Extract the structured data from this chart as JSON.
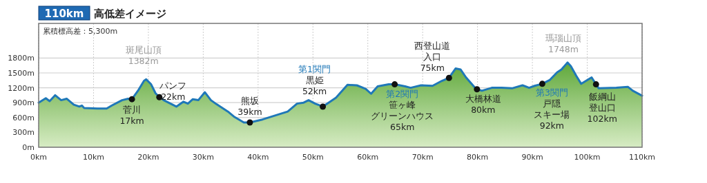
{
  "chart_data": {
    "type": "area",
    "title": "110km",
    "subtitle": "高低差イメージ",
    "xlim": [
      0,
      110
    ],
    "xticks": [
      {
        "value": 0,
        "label": "0km"
      },
      {
        "value": 10,
        "label": "10km"
      },
      {
        "value": 20,
        "label": "20km"
      },
      {
        "value": 30,
        "label": "30km"
      },
      {
        "value": 40,
        "label": "40km"
      },
      {
        "value": 50,
        "label": "50km"
      },
      {
        "value": 60,
        "label": "60km"
      },
      {
        "value": 70,
        "label": "70km"
      },
      {
        "value": 80,
        "label": "80km"
      },
      {
        "value": 90,
        "label": "90km"
      },
      {
        "value": 100,
        "label": "100km"
      },
      {
        "value": 110,
        "label": "110km"
      }
    ],
    "ylim": [
      0,
      2500
    ],
    "yticks": [
      {
        "value": 0,
        "label": "0m"
      },
      {
        "value": 300,
        "label": "300m"
      },
      {
        "value": 600,
        "label": "600m"
      },
      {
        "value": 900,
        "label": "900m"
      },
      {
        "value": 1200,
        "label": "1200m"
      },
      {
        "value": 1500,
        "label": "1500m"
      },
      {
        "value": 1800,
        "label": "1800m"
      }
    ],
    "grid": true,
    "series": [
      {
        "color": "#1f78b8",
        "x": [
          0,
          1.3,
          2.0,
          3.0,
          4.1,
          5.1,
          6.4,
          7.4,
          7.9,
          8.3,
          10.7,
          12.4,
          13.3,
          15.2,
          16.3,
          17.0,
          18.1,
          19.2,
          19.6,
          20.5,
          21.3,
          22.0,
          22.8,
          25.1,
          26.4,
          27.2,
          28.1,
          29.1,
          30.3,
          31.4,
          32.4,
          34.5,
          35.7,
          37.4,
          38.5,
          40.8,
          45.4,
          47.1,
          48.3,
          49.2,
          50.4,
          51.8,
          54.2,
          56.3,
          58.0,
          59.6,
          60.6,
          61.8,
          63.8,
          64.9,
          66.8,
          67.8,
          69.7,
          71.8,
          73.5,
          74.8,
          76.0,
          76.9,
          77.9,
          79.7,
          79.9,
          80.8,
          82.6,
          84.4,
          86.3,
          88.2,
          89.4,
          90.4,
          91.8,
          93.2,
          94.5,
          95.3,
          96.4,
          97.0,
          98.0,
          98.9,
          100.8,
          101.6,
          102.1,
          105.3,
          107.4,
          108.3,
          110
        ],
        "values": [
          900,
          990,
          930,
          1050,
          950,
          980,
          860,
          820,
          840,
          790,
          780,
          780,
          840,
          950,
          980,
          970,
          1140,
          1340,
          1370,
          1270,
          1090,
          1010,
          950,
          820,
          920,
          880,
          970,
          950,
          1110,
          950,
          870,
          720,
          610,
          500,
          500,
          560,
          720,
          880,
          900,
          950,
          880,
          820,
          1000,
          1260,
          1250,
          1180,
          1080,
          1230,
          1270,
          1270,
          1230,
          1200,
          1250,
          1240,
          1340,
          1400,
          1590,
          1570,
          1410,
          1180,
          1170,
          1140,
          1200,
          1200,
          1190,
          1250,
          1200,
          1240,
          1280,
          1360,
          1510,
          1570,
          1710,
          1640,
          1440,
          1280,
          1410,
          1270,
          1190,
          1200,
          1220,
          1140,
          1040
        ]
      },
      {
        "type": "scatter",
        "color": "#111111",
        "marker": "circle",
        "x": [
          17.0,
          22.0,
          38.5,
          51.8,
          64.9,
          74.8,
          79.9,
          91.8,
          101.6
        ],
        "values": [
          970,
          1010,
          500,
          820,
          1270,
          1400,
          1170,
          1280,
          1270
        ]
      }
    ],
    "annotations": [
      "累積標高差：5,300m",
      {
        "text": "斑尾山頂",
        "x": 19.6,
        "y": 1370
      },
      {
        "text": "1382m",
        "x": 19.6,
        "y": 1370
      },
      {
        "text": "菅川",
        "x": 17.0,
        "y": 970
      },
      {
        "text": "17km",
        "x": 17.0,
        "y": 970
      },
      {
        "text": "パンフ",
        "x": 22.0,
        "y": 1010
      },
      {
        "text": "22km",
        "x": 22.0,
        "y": 1010
      },
      {
        "text": "熊坂",
        "x": 38.5,
        "y": 500
      },
      {
        "text": "39km",
        "x": 38.5,
        "y": 500
      },
      "第1関門",
      {
        "text": "黒姫",
        "x": 51.8,
        "y": 820
      },
      {
        "text": "52km",
        "x": 51.8,
        "y": 820
      },
      {
        "text": "第2関門",
        "x": 64.9,
        "y": 1270
      },
      {
        "text": "笹ヶ峰",
        "x": 64.9,
        "y": 1270
      },
      "グリーンハウス",
      "65km",
      "西登山道",
      {
        "text": "入口",
        "x": 74.8,
        "y": 1400
      },
      {
        "text": "75km",
        "x": 74.8,
        "y": 1400
      },
      {
        "text": "大橋林道",
        "x": 79.9,
        "y": 1170
      },
      {
        "text": "80km",
        "x": 79.9,
        "y": 1170
      },
      {
        "text": "第3関門",
        "x": 91.8,
        "y": 1280
      },
      {
        "text": "戸隠",
        "x": 91.8,
        "y": 1280
      },
      {
        "text": "スキー場",
        "x": 91.8,
        "y": 1280
      },
      "92km",
      {
        "text": "飯綱山",
        "x": 101.6,
        "y": 1270
      },
      {
        "text": "登山口",
        "x": 101.6,
        "y": 1270
      },
      "102km",
      {
        "text": "瑪瑙山頂",
        "x": 96.4,
        "y": 1710
      },
      {
        "text": "1748m",
        "x": 96.4,
        "y": 1710
      }
    ]
  }
}
